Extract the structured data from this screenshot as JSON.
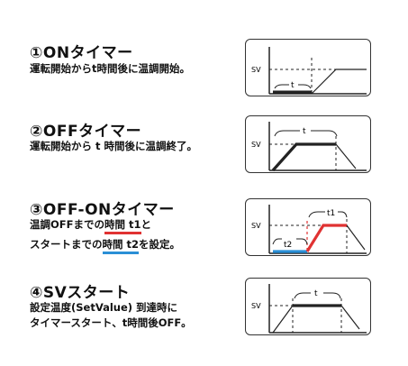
{
  "sections": [
    {
      "title": "①ONタイマー",
      "desc": [
        "運転開始からt時間後に温調開始。"
      ],
      "diagram": {
        "sv_label": "SV",
        "t_label": "t"
      }
    },
    {
      "title": "②OFFタイマー",
      "desc": [
        "運転開始から t 時間後に温調終了。"
      ],
      "diagram": {
        "sv_label": "SV",
        "t_label": "t"
      }
    },
    {
      "title": "③OFF-ONタイマー",
      "desc3": {
        "line1_pre": "温調OFFまでの",
        "line1_ul": "時間 t1",
        "line1_post": "と",
        "line2_pre": "スタートまでの",
        "line2_ul": "時間 t2",
        "line2_post": "を設定。"
      },
      "diagram": {
        "sv_label": "SV",
        "t1_label": "t1",
        "t2_label": "t2"
      }
    },
    {
      "title": "④SVスタート",
      "desc": [
        "設定温度(SetValue) 到達時に",
        "タイマースタート、t時間後OFF。"
      ],
      "diagram": {
        "sv_label": "SV",
        "t_label": "t"
      }
    }
  ],
  "colors": {
    "accent_red": "#e03232",
    "accent_blue": "#2a8fd6",
    "line": "#222222"
  }
}
